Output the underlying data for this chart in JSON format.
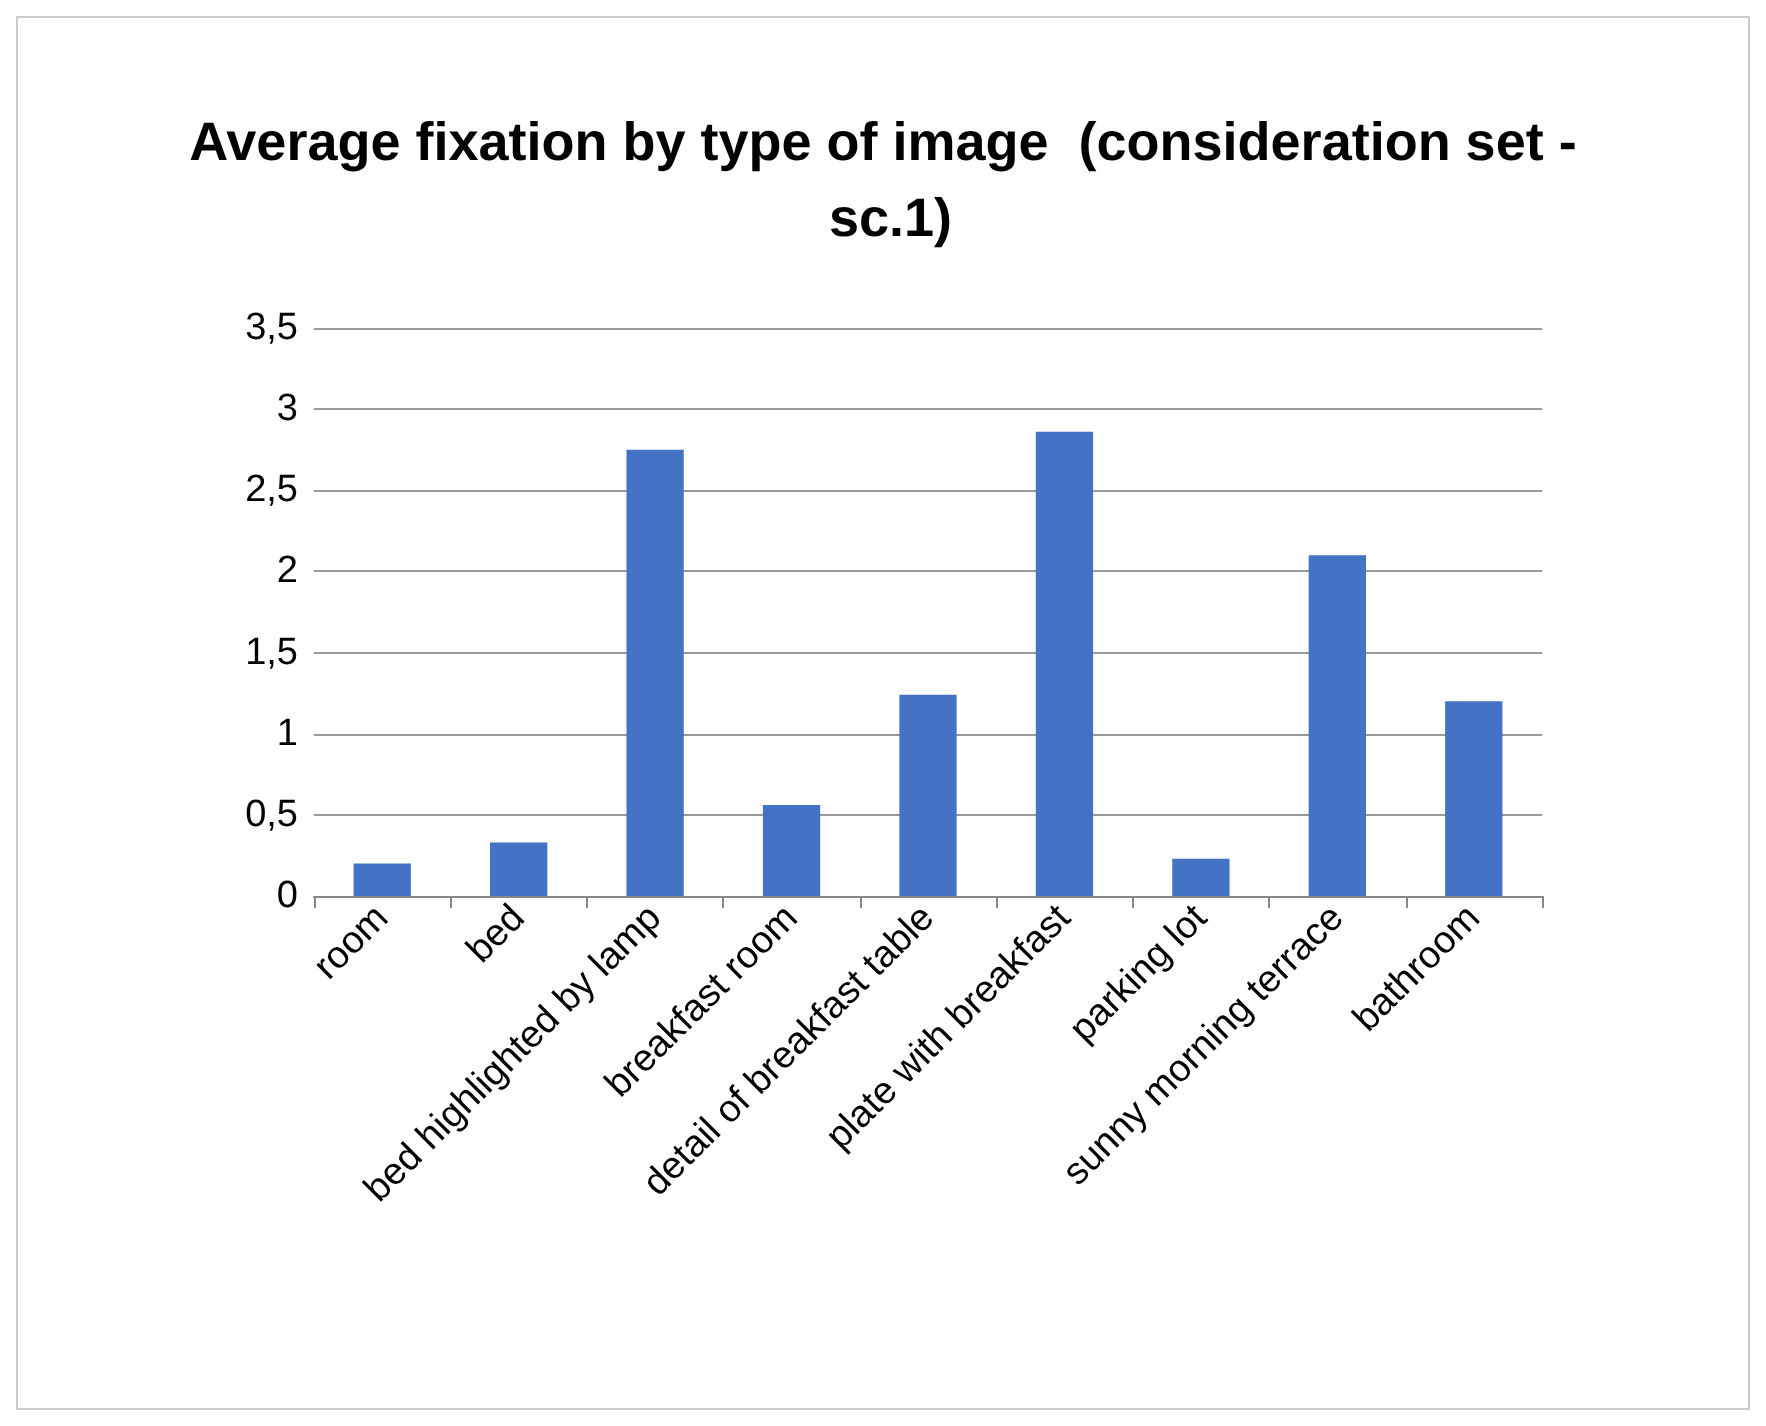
{
  "chart_data": {
    "type": "bar",
    "title": "Average fixation by type of image  (consideration set - sc.1)",
    "categories": [
      "room",
      "bed",
      "bed highlighted by lamp",
      "breakfast room",
      "detail of breakfast table",
      "plate with breakfast",
      "parking lot",
      "sunny morning terrace",
      "bathroom"
    ],
    "values": [
      0.2,
      0.33,
      2.75,
      0.56,
      1.24,
      2.86,
      0.23,
      2.1,
      1.2
    ],
    "color": "#4472c4",
    "ylim": [
      0,
      3.5
    ],
    "yticks": [
      0,
      {
        "value": 0.5,
        "label": "0,5"
      },
      1,
      {
        "value": 1.5,
        "label": "1,5"
      },
      2,
      {
        "value": 2.5,
        "label": "2,5"
      },
      3,
      {
        "value": 3.5,
        "label": "3,5"
      }
    ],
    "grid": "y"
  }
}
